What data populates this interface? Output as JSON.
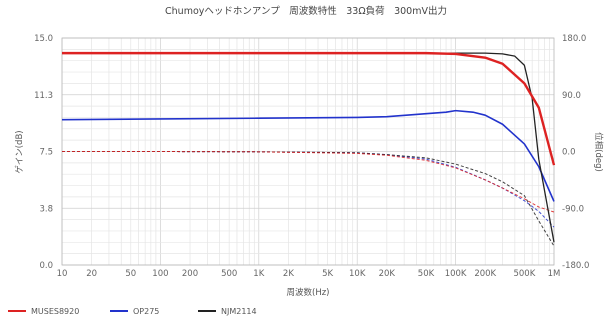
{
  "chart_data": {
    "type": "line",
    "title": "Chumoyヘッドホンアンプ　周波数特性　33Ω負荷　300mV出力",
    "xlabel": "周波数(Hz)",
    "ylabel": "ゲイン(dB)",
    "y2label": "位相(deg)",
    "x_scale": "log",
    "xlim": [
      10,
      1000000
    ],
    "ylim": [
      0.0,
      15.0
    ],
    "y2lim": [
      -180.0,
      180.0
    ],
    "grid": true,
    "legend_position": "bottom-left",
    "x_ticks": [
      "10",
      "20",
      "50",
      "100",
      "200",
      "500",
      "1K",
      "2K",
      "5K",
      "10K",
      "20K",
      "50K",
      "100K",
      "200K",
      "500K",
      "1M"
    ],
    "x_tick_values": [
      10,
      20,
      50,
      100,
      200,
      500,
      1000,
      2000,
      5000,
      10000,
      20000,
      50000,
      100000,
      200000,
      500000,
      1000000
    ],
    "y_ticks": [
      "0.0",
      "3.8",
      "7.5",
      "11.3",
      "15.0"
    ],
    "y_tick_values": [
      0.0,
      3.75,
      7.5,
      11.25,
      15.0
    ],
    "y2_ticks": [
      "-180.0",
      "-90.0",
      "0.0",
      "90.0",
      "180.0"
    ],
    "y2_tick_values": [
      -180,
      -90,
      0,
      90,
      180
    ],
    "series": [
      {
        "name": "MUSES8920",
        "color": "#dd2222",
        "gain": {
          "x": [
            10,
            20,
            50,
            100,
            200,
            500,
            1000,
            2000,
            5000,
            10000,
            20000,
            50000,
            100000,
            200000,
            300000,
            500000,
            700000,
            1000000
          ],
          "y": [
            14.0,
            14.0,
            14.0,
            14.0,
            14.0,
            14.0,
            14.0,
            14.0,
            14.0,
            14.0,
            14.0,
            14.0,
            13.95,
            13.7,
            13.3,
            12.0,
            10.4,
            6.6
          ]
        },
        "phase": {
          "x": [
            10,
            20,
            50,
            100,
            1000,
            10000,
            20000,
            50000,
            100000,
            200000,
            300000,
            500000,
            700000,
            1000000
          ],
          "y": [
            0,
            0,
            0,
            0,
            -0.5,
            -3,
            -6,
            -14,
            -26,
            -45,
            -58,
            -75,
            -88,
            -96
          ]
        }
      },
      {
        "name": "OP275",
        "color": "#2233cc",
        "gain": {
          "x": [
            10,
            100,
            1000,
            10000,
            20000,
            50000,
            80000,
            100000,
            150000,
            200000,
            300000,
            500000,
            700000,
            1000000
          ],
          "y": [
            9.6,
            9.65,
            9.7,
            9.75,
            9.8,
            10.0,
            10.1,
            10.2,
            10.1,
            9.9,
            9.3,
            8.0,
            6.5,
            4.2
          ]
        },
        "phase": {
          "x": [
            10,
            100,
            1000,
            10000,
            20000,
            50000,
            100000,
            200000,
            300000,
            500000,
            700000,
            1000000
          ],
          "y": [
            0,
            0,
            -0.5,
            -2,
            -5,
            -12,
            -25,
            -45,
            -58,
            -78,
            -95,
            -120
          ]
        }
      },
      {
        "name": "NJM2114",
        "color": "#222222",
        "gain": {
          "x": [
            10,
            100,
            1000,
            10000,
            50000,
            100000,
            200000,
            300000,
            400000,
            500000,
            600000,
            700000,
            1000000
          ],
          "y": [
            14.0,
            14.0,
            14.0,
            14.0,
            14.0,
            14.0,
            14.0,
            13.95,
            13.8,
            13.2,
            11.0,
            7.0,
            1.5
          ]
        },
        "phase": {
          "x": [
            10,
            100,
            1000,
            10000,
            20000,
            50000,
            100000,
            200000,
            300000,
            500000,
            700000,
            1000000
          ],
          "y": [
            0,
            0,
            -0.5,
            -2,
            -5,
            -10,
            -20,
            -35,
            -48,
            -70,
            -110,
            -150
          ]
        }
      }
    ]
  }
}
